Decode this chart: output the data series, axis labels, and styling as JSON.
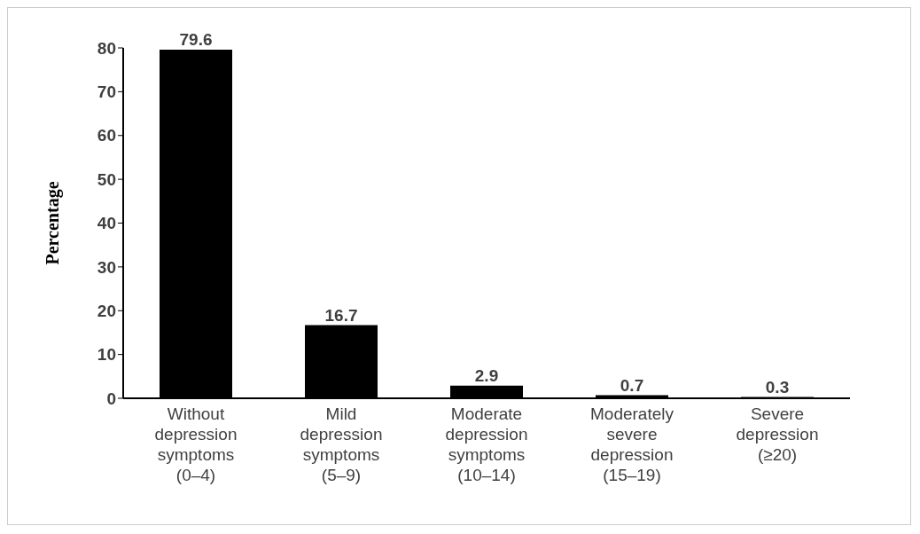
{
  "chart_data": {
    "type": "bar",
    "ylabel": "Percentage",
    "categories": [
      "Without depression symptoms (0–4)",
      "Mild depression symptoms (5–9)",
      "Moderate depression symptoms (10–14)",
      "Moderately severe depression (15–19)",
      "Severe depression (≥20)"
    ],
    "values": [
      79.6,
      16.7,
      2.9,
      0.7,
      0.3
    ],
    "color": "#000000",
    "ylim": [
      0,
      80
    ],
    "yticks": [
      0,
      10,
      20,
      30,
      40,
      50,
      60,
      70,
      80
    ],
    "grid": false,
    "data_labels": true
  }
}
